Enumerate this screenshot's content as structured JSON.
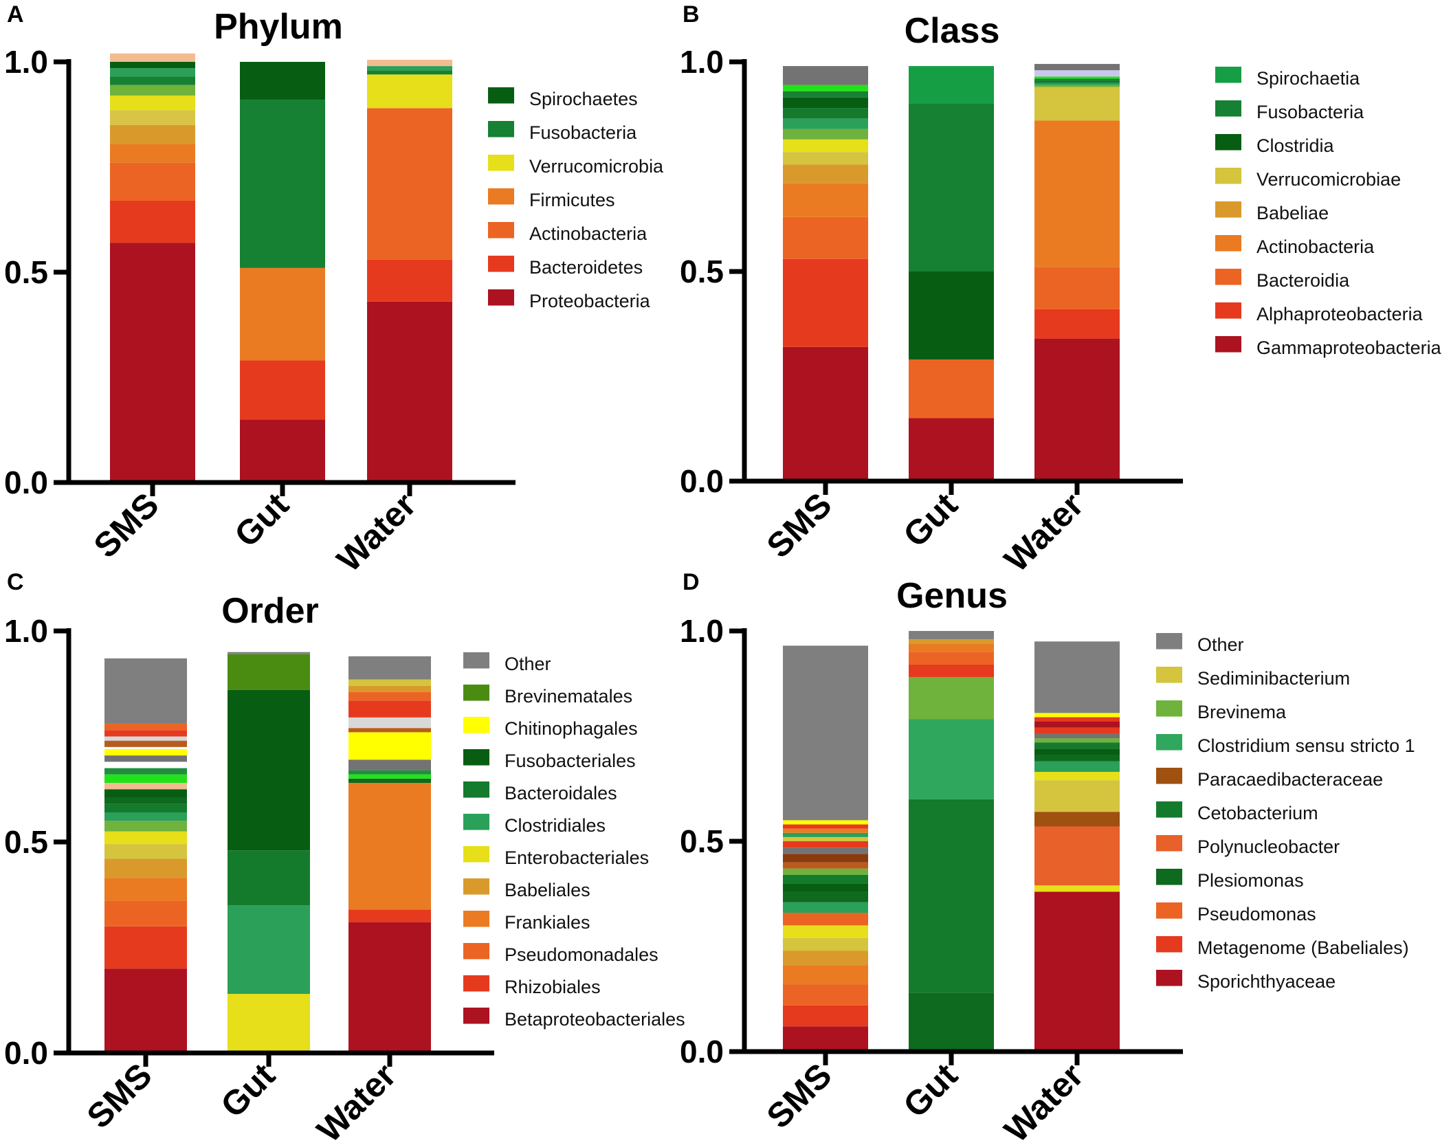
{
  "figure": {
    "categories": [
      "SMS",
      "Gut",
      "Water"
    ]
  },
  "chart_data": [
    {
      "type": "bar",
      "stacked": true,
      "panel": "A",
      "title": "Phylum",
      "categories": [
        "SMS",
        "Gut",
        "Water"
      ],
      "ylim": [
        0,
        1.0
      ],
      "yticks": [
        "0.0",
        "0.5",
        "1.0"
      ],
      "series": [
        {
          "name": "Proteobacteria",
          "color": "#ad1220",
          "values": [
            0.57,
            0.15,
            0.43
          ]
        },
        {
          "name": "Bacteroidetes",
          "color": "#e63a1e",
          "values": [
            0.1,
            0.14,
            0.1
          ]
        },
        {
          "name": "Actinobacteria",
          "color": "#ec6423",
          "values": [
            0.09,
            0.0,
            0.36
          ]
        },
        {
          "name": "Firmicutes",
          "color": "#ea7b22",
          "values": [
            0.045,
            0.22,
            0.0
          ]
        },
        {
          "name": "",
          "color": "#d99a2b",
          "values": [
            0.045,
            0.0,
            0.0
          ]
        },
        {
          "name": "",
          "color": "#d8c445",
          "values": [
            0.035,
            0.0,
            0.0
          ]
        },
        {
          "name": "Verrucomicrobia",
          "color": "#e6df1a",
          "values": [
            0.035,
            0.0,
            0.08
          ]
        },
        {
          "name": "",
          "color": "#6fb23c",
          "values": [
            0.025,
            0.0,
            0.0
          ]
        },
        {
          "name": "Fusobacteria",
          "color": "#168033",
          "values": [
            0.02,
            0.4,
            0.01
          ]
        },
        {
          "name": "",
          "color": "#2aa058",
          "values": [
            0.02,
            0.0,
            0.01
          ]
        },
        {
          "name": "Spirochaetes",
          "color": "#075e12",
          "values": [
            0.015,
            0.09,
            0.0
          ]
        },
        {
          "name": "",
          "color": "#f2bc8e",
          "values": [
            0.02,
            0.0,
            0.015
          ]
        }
      ],
      "legend": [
        "Spirochaetes",
        "Fusobacteria",
        "Verrucomicrobia",
        "Firmicutes",
        "Actinobacteria",
        "Bacteroidetes",
        "Proteobacteria"
      ]
    },
    {
      "type": "bar",
      "stacked": true,
      "panel": "B",
      "title": "Class",
      "categories": [
        "SMS",
        "Gut",
        "Water"
      ],
      "ylim": [
        0,
        1.0
      ],
      "yticks": [
        "0.0",
        "0.5",
        "1.0"
      ],
      "series": [
        {
          "name": "Gammaproteobacteria",
          "color": "#ad1220",
          "values": [
            0.32,
            0.15,
            0.34
          ]
        },
        {
          "name": "Alphaproteobacteria",
          "color": "#e63a1e",
          "values": [
            0.21,
            0.0,
            0.07
          ]
        },
        {
          "name": "Bacteroidia",
          "color": "#ec6423",
          "values": [
            0.1,
            0.14,
            0.1
          ]
        },
        {
          "name": "Actinobacteria",
          "color": "#ea7b22",
          "values": [
            0.08,
            0.0,
            0.35
          ]
        },
        {
          "name": "Babeliae",
          "color": "#d99a2b",
          "values": [
            0.045,
            0.0,
            0.0
          ]
        },
        {
          "name": "Verrucomicrobiae",
          "color": "#d4c43e",
          "values": [
            0.03,
            0.0,
            0.08
          ]
        },
        {
          "name": "",
          "color": "#e6df1a",
          "values": [
            0.03,
            0.0,
            0.0
          ]
        },
        {
          "name": "",
          "color": "#6fb23c",
          "values": [
            0.025,
            0.0,
            0.005
          ]
        },
        {
          "name": "",
          "color": "#2aa058",
          "values": [
            0.025,
            0.0,
            0.005
          ]
        },
        {
          "name": "",
          "color": "#147a2c",
          "values": [
            0.025,
            0.0,
            0.005
          ]
        },
        {
          "name": "Clostridia",
          "color": "#075e12",
          "values": [
            0.025,
            0.21,
            0.0
          ]
        },
        {
          "name": "Fusobacteria",
          "color": "#168033",
          "values": [
            0.015,
            0.4,
            0.005
          ]
        },
        {
          "name": "",
          "color": "#22e21a",
          "values": [
            0.015,
            0.0,
            0.005
          ]
        },
        {
          "name": "Spirochaetia",
          "color": "#169e45",
          "values": [
            0.0,
            0.09,
            0.0
          ]
        },
        {
          "name": "",
          "color": "#c8c8ec",
          "values": [
            0.0,
            0.0,
            0.015
          ]
        },
        {
          "name": "",
          "color": "#737373",
          "values": [
            0.045,
            0.0,
            0.015
          ]
        }
      ],
      "legend": [
        "Spirochaetia",
        "Fusobacteria",
        "Clostridia",
        "Verrucomicrobiae",
        "Babeliae",
        "Actinobacteria",
        "Bacteroidia",
        "Alphaproteobacteria",
        "Gammaproteobacteria"
      ]
    },
    {
      "type": "bar",
      "stacked": true,
      "panel": "C",
      "title": "Order",
      "categories": [
        "SMS",
        "Gut",
        "Water"
      ],
      "ylim": [
        0,
        1.0
      ],
      "yticks": [
        "0.0",
        "0.5",
        "1.0"
      ],
      "series": [
        {
          "name": "Betaproteobacteriales",
          "color": "#ad1220",
          "values": [
            0.2,
            0.0,
            0.31
          ]
        },
        {
          "name": "Rhizobiales",
          "color": "#e63a1e",
          "values": [
            0.1,
            0.0,
            0.03
          ]
        },
        {
          "name": "Pseudomonadales",
          "color": "#ec6423",
          "values": [
            0.06,
            0.0,
            0.0
          ]
        },
        {
          "name": "Frankiales",
          "color": "#ea7b22",
          "values": [
            0.055,
            0.0,
            0.3
          ]
        },
        {
          "name": "Babeliales",
          "color": "#d99a2b",
          "values": [
            0.045,
            0.0,
            0.0
          ]
        },
        {
          "name": "",
          "color": "#d4c43e",
          "values": [
            0.035,
            0.0,
            0.0
          ]
        },
        {
          "name": "Enterobacteriales",
          "color": "#e6df1a",
          "values": [
            0.03,
            0.14,
            0.0
          ]
        },
        {
          "name": "",
          "color": "#6fb23c",
          "values": [
            0.025,
            0.0,
            0.0
          ]
        },
        {
          "name": "Clostridiales",
          "color": "#2aa058",
          "values": [
            0.02,
            0.21,
            0.0
          ]
        },
        {
          "name": "Bacteroidales",
          "color": "#147a2c",
          "values": [
            0.02,
            0.13,
            0.0
          ]
        },
        {
          "name": "",
          "color": "#0d6a1e",
          "values": [
            0.015,
            0.0,
            0.01
          ]
        },
        {
          "name": "Fusobacteriales",
          "color": "#075e12",
          "values": [
            0.02,
            0.38,
            0.0
          ]
        },
        {
          "name": "",
          "color": "#f2bc8e",
          "values": [
            0.015,
            0.0,
            0.0
          ]
        },
        {
          "name": "",
          "color": "#22e21a",
          "values": [
            0.02,
            0.0,
            0.01
          ]
        },
        {
          "name": "",
          "color": "#1f8f3c",
          "values": [
            0.015,
            0.0,
            0.01
          ]
        },
        {
          "name": "",
          "color": "#ffffff",
          "values": [
            0.015,
            0.0,
            0.0
          ]
        },
        {
          "name": "",
          "color": "#737373",
          "values": [
            0.015,
            0.0,
            0.025
          ]
        },
        {
          "name": "Chitinophagales",
          "color": "#ffff00",
          "values": [
            0.015,
            0.0,
            0.065
          ]
        },
        {
          "name": "",
          "color": "#ffffff",
          "values": [
            0.005,
            0.0,
            0.0
          ]
        },
        {
          "name": "",
          "color": "#b85c1e",
          "values": [
            0.015,
            0.0,
            0.01
          ]
        },
        {
          "name": "",
          "color": "#d8d8d8",
          "values": [
            0.01,
            0.0,
            0.025
          ]
        },
        {
          "name": "",
          "color": "#e63a1e",
          "values": [
            0.015,
            0.0,
            0.04
          ]
        },
        {
          "name": "",
          "color": "#ec6423",
          "values": [
            0.015,
            0.0,
            0.02
          ]
        },
        {
          "name": "",
          "color": "#d99a2b",
          "values": [
            0.0,
            0.0,
            0.015
          ]
        },
        {
          "name": "",
          "color": "#d4c43e",
          "values": [
            0.0,
            0.0,
            0.015
          ]
        },
        {
          "name": "Brevinematales",
          "color": "#4a8c12",
          "values": [
            0.0,
            0.085,
            0.0
          ]
        },
        {
          "name": "Other",
          "color": "#7f7f7f",
          "values": [
            0.155,
            0.005,
            0.055
          ]
        }
      ],
      "legend": [
        "Other",
        "Brevinematales",
        "Chitinophagales",
        "Fusobacteriales",
        "Bacteroidales",
        "Clostridiales",
        "Enterobacteriales",
        "Babeliales",
        "Frankiales",
        "Pseudomonadales",
        "Rhizobiales",
        "Betaproteobacteriales"
      ]
    },
    {
      "type": "bar",
      "stacked": true,
      "panel": "D",
      "title": "Genus",
      "categories": [
        "SMS",
        "Gut",
        "Water"
      ],
      "ylim": [
        0,
        1.0
      ],
      "yticks": [
        "0.0",
        "0.5",
        "1.0"
      ],
      "series": [
        {
          "name": "Sporichthyaceae",
          "color": "#ad1220",
          "values": [
            0.06,
            0.0,
            0.38
          ]
        },
        {
          "name": "Metagenome (Babeliales)",
          "color": "#e63a1e",
          "values": [
            0.05,
            0.0,
            0.0
          ]
        },
        {
          "name": "Pseudomonas",
          "color": "#ec6423",
          "values": [
            0.05,
            0.0,
            0.0
          ]
        },
        {
          "name": "",
          "color": "#e6df1a",
          "values": [
            0.0,
            0.0,
            0.015
          ]
        },
        {
          "name": "Polynucleobacter",
          "color": "#e8602a",
          "values": [
            0.0,
            0.0,
            0.14
          ]
        },
        {
          "name": "Paracaedibacteraceae",
          "color": "#a0500f",
          "values": [
            0.0,
            0.0,
            0.035
          ]
        },
        {
          "name": "",
          "color": "#ea7b22",
          "values": [
            0.045,
            0.0,
            0.0
          ]
        },
        {
          "name": "",
          "color": "#d99a2b",
          "values": [
            0.035,
            0.0,
            0.0
          ]
        },
        {
          "name": "",
          "color": "#d4c43e",
          "values": [
            0.03,
            0.0,
            0.075
          ]
        },
        {
          "name": "",
          "color": "#e6df1a",
          "values": [
            0.03,
            0.0,
            0.02
          ]
        },
        {
          "name": "",
          "color": "#ec6423",
          "values": [
            0.03,
            0.0,
            0.0
          ]
        },
        {
          "name": "",
          "color": "#2aa058",
          "values": [
            0.025,
            0.0,
            0.025
          ]
        },
        {
          "name": "Plesiomonas",
          "color": "#0d6a1e",
          "values": [
            0.025,
            0.14,
            0.015
          ]
        },
        {
          "name": "",
          "color": "#075e12",
          "values": [
            0.02,
            0.0,
            0.015
          ]
        },
        {
          "name": "Cetobacterium",
          "color": "#147a2c",
          "values": [
            0.02,
            0.46,
            0.015
          ]
        },
        {
          "name": "",
          "color": "#6fb23c",
          "values": [
            0.015,
            0.0,
            0.01
          ]
        },
        {
          "name": "",
          "color": "#b85c1e",
          "values": [
            0.015,
            0.0,
            0.0
          ]
        },
        {
          "name": "",
          "color": "#8a3a0f",
          "values": [
            0.02,
            0.0,
            0.0
          ]
        },
        {
          "name": "",
          "color": "#737373",
          "values": [
            0.015,
            0.0,
            0.01
          ]
        },
        {
          "name": "",
          "color": "#e63a1e",
          "values": [
            0.015,
            0.0,
            0.015
          ]
        },
        {
          "name": "",
          "color": "#ad1220",
          "values": [
            0.0,
            0.0,
            0.015
          ]
        },
        {
          "name": "",
          "color": "#d4c43e",
          "values": [
            0.01,
            0.0,
            0.0
          ]
        },
        {
          "name": "",
          "color": "#2aa058",
          "values": [
            0.01,
            0.0,
            0.0
          ]
        },
        {
          "name": "",
          "color": "#ea7b22",
          "values": [
            0.01,
            0.0,
            0.0
          ]
        },
        {
          "name": "",
          "color": "#e63a1e",
          "values": [
            0.01,
            0.0,
            0.01
          ]
        },
        {
          "name": "",
          "color": "#ffff00",
          "values": [
            0.01,
            0.0,
            0.01
          ]
        },
        {
          "name": "Clostridium sensu stricto 1",
          "color": "#2fa75c",
          "values": [
            0.0,
            0.19,
            0.0
          ]
        },
        {
          "name": "Brevinema",
          "color": "#6fb23c",
          "values": [
            0.0,
            0.1,
            0.0
          ]
        },
        {
          "name": "Sediminibacterium",
          "color": "#d4c43e",
          "values": [
            0.0,
            0.0,
            0.0
          ]
        },
        {
          "name": "",
          "color": "#e63a1e",
          "values": [
            0.0,
            0.03,
            0.0
          ]
        },
        {
          "name": "",
          "color": "#ec6423",
          "values": [
            0.0,
            0.03,
            0.0
          ]
        },
        {
          "name": "",
          "color": "#ea7b22",
          "values": [
            0.0,
            0.02,
            0.0
          ]
        },
        {
          "name": "",
          "color": "#d99a2b",
          "values": [
            0.0,
            0.01,
            0.0
          ]
        },
        {
          "name": "Other",
          "color": "#7f7f7f",
          "values": [
            0.415,
            0.02,
            0.17
          ]
        }
      ],
      "legend": [
        "Other",
        "Sediminibacterium",
        "Brevinema",
        "Clostridium sensu stricto 1",
        "Paracaedibacteraceae",
        "Cetobacterium",
        "Polynucleobacter",
        "Plesiomonas",
        "Pseudomonas",
        "Metagenome (Babeliales)",
        "Sporichthyaceae"
      ]
    }
  ]
}
